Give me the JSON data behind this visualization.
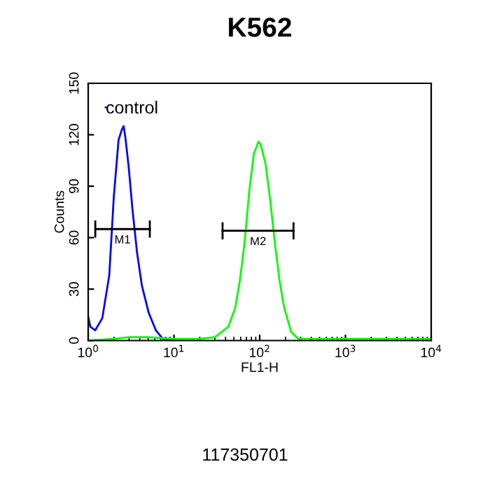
{
  "chart_data": {
    "type": "line",
    "title": "K562",
    "xlabel": "FL1-H",
    "ylabel": "Counts",
    "log": "x",
    "xlim": [
      1,
      10000
    ],
    "xticks": [
      {
        "value": 1,
        "label": "10$^{0}$"
      },
      {
        "value": 10,
        "label": "10$^{1}$"
      },
      {
        "value": 100,
        "label": "10$^{2}$"
      },
      {
        "value": 1000,
        "label": "10$^{3}$"
      },
      {
        "value": 10000,
        "label": "10$^{4}$"
      }
    ],
    "ylim": [
      0,
      150
    ],
    "yticks": [
      0,
      30,
      60,
      90,
      120,
      150
    ],
    "grid": false,
    "legend": "top left",
    "marker": "none",
    "line_style": "solid",
    "series": [
      {
        "name": "control",
        "color": "#0000ff",
        "x": [
          1,
          1.06,
          1.21,
          1.46,
          1.76,
          1.99,
          2.26,
          2.47,
          2.59,
          2.72,
          2.97,
          3.29,
          3.72,
          4.23,
          5.09,
          6.15,
          7.43,
          9.55
        ],
        "values": [
          14,
          8,
          6,
          13,
          38,
          84,
          117,
          123,
          125,
          118,
          101,
          76,
          51,
          32,
          16,
          6,
          1,
          0
        ]
      },
      {
        "color": "#00ff00",
        "x": [
          1,
          2,
          3,
          5,
          10,
          20,
          30,
          43.0,
          51.8,
          58.7,
          66.6,
          75.5,
          85.5,
          96.9,
          103.2,
          117,
          132.4,
          150.2,
          170.2,
          193.2,
          232.8,
          281,
          526,
          5000,
          10000
        ],
        "values": [
          0,
          1,
          2,
          2,
          1,
          1,
          2,
          8,
          19,
          35,
          57,
          87,
          109,
          116,
          114,
          103,
          82,
          57,
          35,
          19,
          5,
          1,
          1,
          1,
          1
        ]
      },
      {
        "name": "M1",
        "color": "#000000",
        "x": [
          1.21,
          5.23
        ],
        "values": [
          65,
          65
        ],
        "errors": [
          5,
          5
        ]
      },
      {
        "name": "M2",
        "color": "#000000",
        "x": [
          36.9,
          248
        ],
        "values": [
          64,
          64
        ],
        "errors": [
          5,
          5
        ]
      }
    ],
    "annotations": [
      "117350701"
    ]
  }
}
